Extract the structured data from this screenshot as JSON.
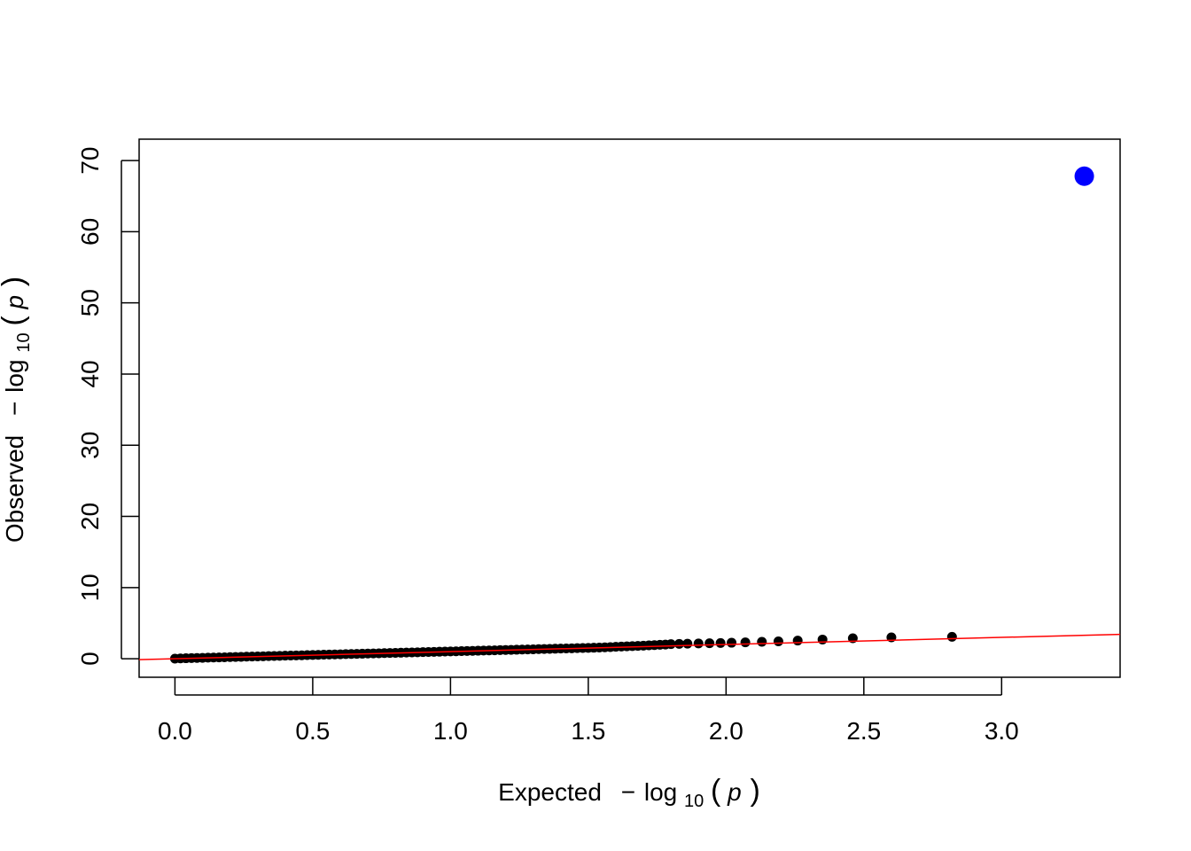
{
  "chart_data": {
    "type": "scatter",
    "title": "",
    "xlabel": {
      "prefix": "Expected",
      "minus": "−",
      "log": "log",
      "subscript": "10",
      "var": "p"
    },
    "ylabel": {
      "prefix": "Observed",
      "minus": "−",
      "log": "log",
      "subscript": "10",
      "var": "p"
    },
    "xlim": [
      -0.13,
      3.43
    ],
    "ylim": [
      -2.6,
      73.0
    ],
    "x_ticks": [
      0.0,
      0.5,
      1.0,
      1.5,
      2.0,
      2.5,
      3.0
    ],
    "x_tick_labels": [
      "0.0",
      "0.5",
      "1.0",
      "1.5",
      "2.0",
      "2.5",
      "3.0"
    ],
    "y_ticks": [
      0,
      10,
      20,
      30,
      40,
      50,
      60,
      70
    ],
    "y_tick_labels": [
      "0",
      "10",
      "20",
      "30",
      "40",
      "50",
      "60",
      "70"
    ],
    "grid": false,
    "reference_line": {
      "slope": 1,
      "intercept": 0,
      "color": "#ff0000"
    },
    "series": [
      {
        "color": "#000000",
        "points": [
          [
            0.0,
            0.02
          ],
          [
            0.02,
            0.05
          ],
          [
            0.04,
            0.07
          ],
          [
            0.06,
            0.09
          ],
          [
            0.08,
            0.11
          ],
          [
            0.1,
            0.13
          ],
          [
            0.12,
            0.15
          ],
          [
            0.14,
            0.17
          ],
          [
            0.16,
            0.19
          ],
          [
            0.18,
            0.21
          ],
          [
            0.2,
            0.23
          ],
          [
            0.22,
            0.25
          ],
          [
            0.24,
            0.27
          ],
          [
            0.26,
            0.29
          ],
          [
            0.28,
            0.31
          ],
          [
            0.3,
            0.33
          ],
          [
            0.32,
            0.35
          ],
          [
            0.34,
            0.37
          ],
          [
            0.36,
            0.39
          ],
          [
            0.38,
            0.41
          ],
          [
            0.4,
            0.43
          ],
          [
            0.42,
            0.45
          ],
          [
            0.44,
            0.47
          ],
          [
            0.46,
            0.49
          ],
          [
            0.48,
            0.51
          ],
          [
            0.5,
            0.53
          ],
          [
            0.52,
            0.55
          ],
          [
            0.54,
            0.57
          ],
          [
            0.56,
            0.59
          ],
          [
            0.58,
            0.61
          ],
          [
            0.6,
            0.63
          ],
          [
            0.62,
            0.65
          ],
          [
            0.64,
            0.67
          ],
          [
            0.66,
            0.69
          ],
          [
            0.68,
            0.71
          ],
          [
            0.7,
            0.73
          ],
          [
            0.72,
            0.75
          ],
          [
            0.74,
            0.77
          ],
          [
            0.76,
            0.79
          ],
          [
            0.78,
            0.81
          ],
          [
            0.8,
            0.83
          ],
          [
            0.82,
            0.85
          ],
          [
            0.84,
            0.87
          ],
          [
            0.86,
            0.89
          ],
          [
            0.88,
            0.91
          ],
          [
            0.9,
            0.93
          ],
          [
            0.92,
            0.95
          ],
          [
            0.94,
            0.97
          ],
          [
            0.96,
            0.99
          ],
          [
            0.98,
            1.01
          ],
          [
            1.0,
            1.03
          ],
          [
            1.02,
            1.05
          ],
          [
            1.04,
            1.07
          ],
          [
            1.06,
            1.09
          ],
          [
            1.08,
            1.11
          ],
          [
            1.1,
            1.13
          ],
          [
            1.12,
            1.15
          ],
          [
            1.14,
            1.17
          ],
          [
            1.16,
            1.19
          ],
          [
            1.18,
            1.21
          ],
          [
            1.2,
            1.23
          ],
          [
            1.22,
            1.25
          ],
          [
            1.24,
            1.27
          ],
          [
            1.26,
            1.29
          ],
          [
            1.28,
            1.31
          ],
          [
            1.3,
            1.33
          ],
          [
            1.32,
            1.35
          ],
          [
            1.34,
            1.37
          ],
          [
            1.36,
            1.39
          ],
          [
            1.38,
            1.41
          ],
          [
            1.4,
            1.43
          ],
          [
            1.42,
            1.45
          ],
          [
            1.44,
            1.47
          ],
          [
            1.46,
            1.49
          ],
          [
            1.48,
            1.51
          ],
          [
            1.5,
            1.53
          ],
          [
            1.52,
            1.55
          ],
          [
            1.54,
            1.57
          ],
          [
            1.56,
            1.6
          ],
          [
            1.58,
            1.64
          ],
          [
            1.6,
            1.68
          ],
          [
            1.62,
            1.72
          ],
          [
            1.64,
            1.75
          ],
          [
            1.66,
            1.78
          ],
          [
            1.68,
            1.81
          ],
          [
            1.7,
            1.84
          ],
          [
            1.72,
            1.88
          ],
          [
            1.74,
            1.92
          ],
          [
            1.76,
            1.96
          ],
          [
            1.78,
            2.0
          ],
          [
            1.8,
            2.05
          ],
          [
            1.83,
            2.09
          ],
          [
            1.86,
            2.12
          ],
          [
            1.9,
            2.15
          ],
          [
            1.94,
            2.18
          ],
          [
            1.98,
            2.21
          ],
          [
            2.02,
            2.25
          ],
          [
            2.07,
            2.3
          ],
          [
            2.13,
            2.38
          ],
          [
            2.19,
            2.45
          ],
          [
            2.26,
            2.55
          ],
          [
            2.35,
            2.7
          ],
          [
            2.46,
            2.88
          ],
          [
            2.6,
            3.0
          ],
          [
            2.82,
            3.08
          ]
        ]
      },
      {
        "color": "#0000ff",
        "points": [
          [
            3.3,
            67.8
          ]
        ]
      }
    ]
  }
}
